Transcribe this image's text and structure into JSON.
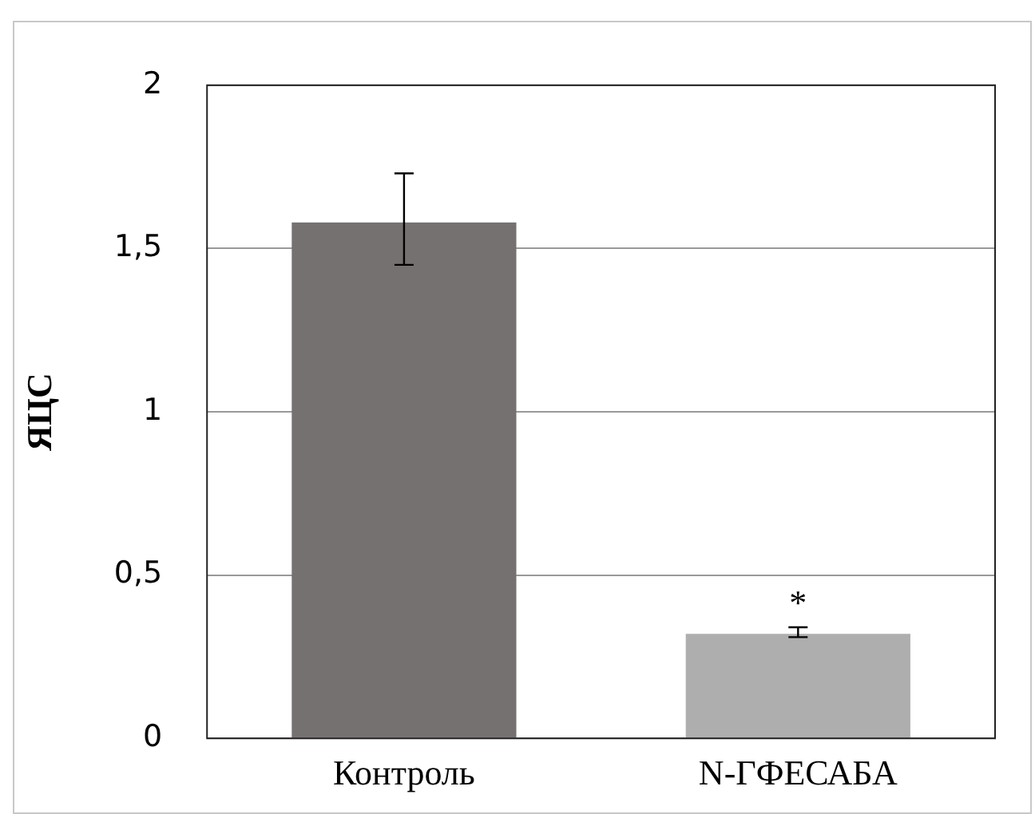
{
  "chart_data": {
    "type": "bar",
    "ylabel": "ЯЦС",
    "categories": [
      "Контроль",
      "N-ГФЕСАБА"
    ],
    "values": [
      1.58,
      0.32
    ],
    "colors": [
      "#767171",
      "#aeaeae"
    ],
    "errors": [
      [
        1.45,
        1.73
      ],
      [
        0.31,
        0.34
      ]
    ],
    "ylim": [
      0,
      2
    ],
    "yticks": [
      0,
      {
        "value": 0.5,
        "label": "0,5"
      },
      1,
      {
        "value": 1.5,
        "label": "1,5"
      },
      2
    ],
    "grid": "y",
    "annotations": [
      "*"
    ]
  }
}
